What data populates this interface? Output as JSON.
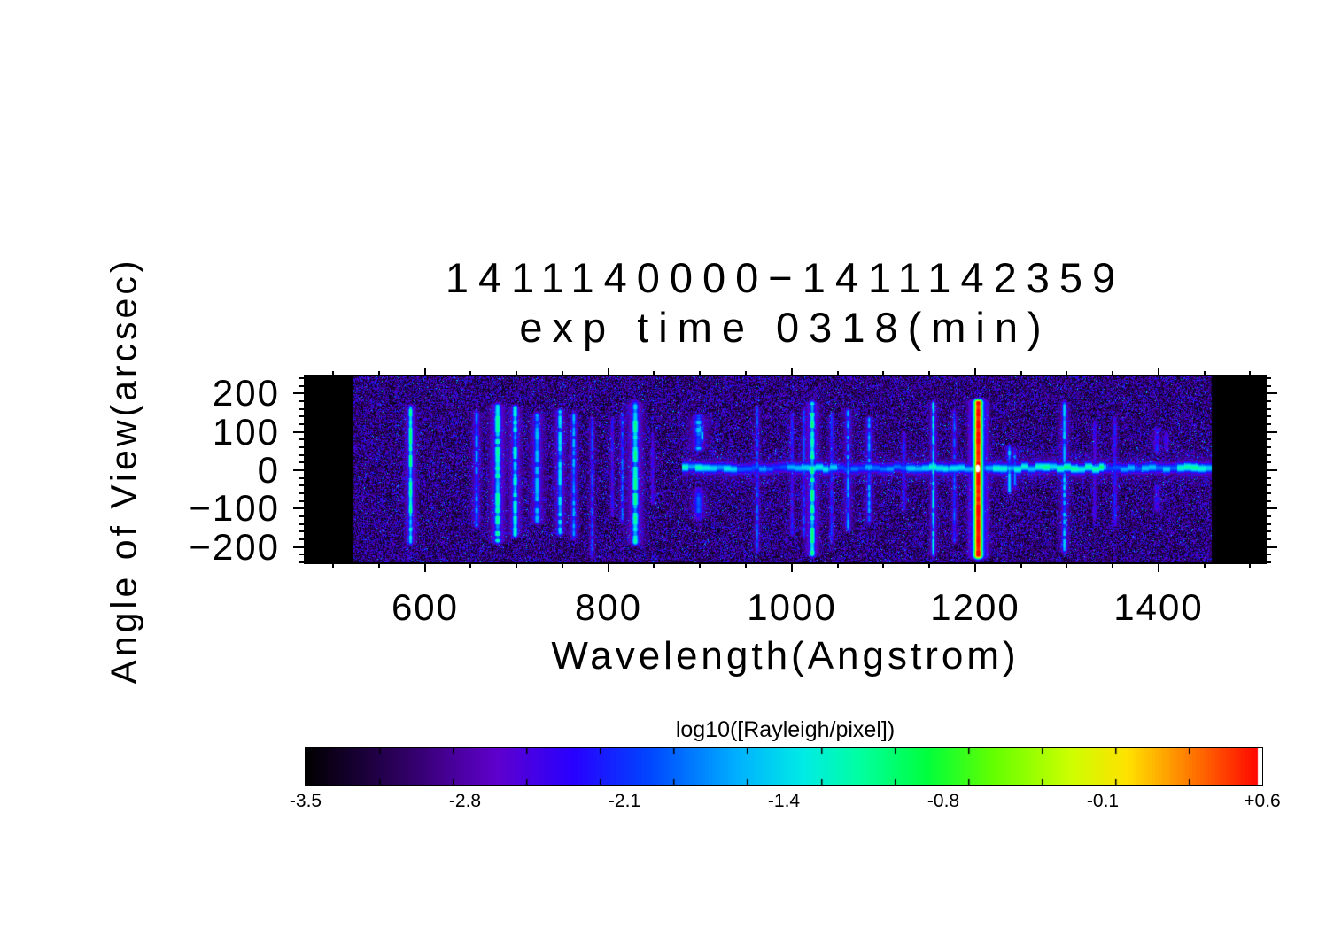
{
  "figure": {
    "title_line1": "1411140000−1411142359",
    "title_line2": "exp time 0318(min)"
  },
  "chart_data": {
    "type": "heatmap",
    "title": "1411140000−1411142359 exp time 0318(min)",
    "xlabel": "Wavelength(Angstrom)",
    "ylabel": "Angle of View(arcsec)",
    "xlim": [
      470,
      1516
    ],
    "ylim": [
      -240,
      245
    ],
    "x_major_ticks": [
      600,
      800,
      1000,
      1200,
      1400
    ],
    "x_tick_labels": [
      "600",
      "800",
      "1000",
      "1200",
      "1400"
    ],
    "x_minor_step": 50,
    "y_major_ticks": [
      200,
      100,
      0,
      -100,
      -200
    ],
    "y_tick_labels": [
      "200",
      "100",
      "0",
      "−100",
      "−200"
    ],
    "y_minor_step": 20,
    "data_wavelength_range": [
      522,
      1458
    ],
    "colorbar": {
      "title": "log10([Rayleigh/pixel])",
      "min": -3.5,
      "max": 0.6,
      "tick_values": [
        -3.5,
        -2.8,
        -2.1,
        -1.4,
        -0.8,
        -0.1,
        0.6
      ],
      "tick_labels": [
        "-3.5",
        "-2.8",
        "-2.1",
        "-1.4",
        "-0.8",
        "-0.1",
        "+0.6"
      ],
      "n_minor_tick_intervals": 13,
      "colormap_stops": [
        [
          0.0,
          [
            0,
            0,
            0
          ]
        ],
        [
          0.1,
          [
            45,
            0,
            95
          ]
        ],
        [
          0.2,
          [
            95,
            0,
            205
          ]
        ],
        [
          0.28,
          [
            40,
            0,
            255
          ]
        ],
        [
          0.36,
          [
            0,
            70,
            255
          ]
        ],
        [
          0.45,
          [
            0,
            175,
            255
          ]
        ],
        [
          0.52,
          [
            0,
            235,
            230
          ]
        ],
        [
          0.58,
          [
            0,
            255,
            160
          ]
        ],
        [
          0.65,
          [
            0,
            255,
            60
          ]
        ],
        [
          0.72,
          [
            100,
            255,
            0
          ]
        ],
        [
          0.8,
          [
            205,
            255,
            0
          ]
        ],
        [
          0.86,
          [
            255,
            225,
            0
          ]
        ],
        [
          0.92,
          [
            255,
            130,
            0
          ]
        ],
        [
          1.0,
          [
            255,
            0,
            0
          ]
        ]
      ]
    },
    "horizontal_band": {
      "center_arcsec": 6,
      "sigma_arcsec": 11,
      "wing_sigma_arcsec": 26,
      "wing_fraction": 0.35,
      "segments": [
        [
          880,
          940,
          0.5
        ],
        [
          940,
          995,
          0.38
        ],
        [
          995,
          1040,
          0.52
        ],
        [
          1040,
          1125,
          0.43
        ],
        [
          1125,
          1170,
          0.52
        ],
        [
          1170,
          1212,
          0.46
        ],
        [
          1212,
          1235,
          0.5
        ],
        [
          1235,
          1275,
          0.52
        ],
        [
          1275,
          1340,
          0.55
        ],
        [
          1340,
          1420,
          0.42
        ],
        [
          1420,
          1458,
          0.55
        ]
      ]
    },
    "emission_lines": [
      {
        "wl": 584,
        "i": 0.58,
        "y0": -205,
        "y1": 180,
        "w": 4
      },
      {
        "wl": 656,
        "i": 0.42,
        "y0": -160,
        "y1": 165,
        "w": 4
      },
      {
        "wl": 679,
        "i": 0.55,
        "y0": -200,
        "y1": 185,
        "w": 6
      },
      {
        "wl": 698,
        "i": 0.52,
        "y0": -185,
        "y1": 180,
        "w": 5
      },
      {
        "wl": 722,
        "i": 0.44,
        "y0": -150,
        "y1": 160,
        "w": 6
      },
      {
        "wl": 747,
        "i": 0.48,
        "y0": -180,
        "y1": 170,
        "w": 5
      },
      {
        "wl": 762,
        "i": 0.44,
        "y0": -190,
        "y1": 160,
        "w": 4
      },
      {
        "wl": 782,
        "i": 0.36,
        "y0": -240,
        "y1": 150,
        "w": 3
      },
      {
        "wl": 804,
        "i": 0.3,
        "y0": -130,
        "y1": 150,
        "w": 3
      },
      {
        "wl": 815,
        "i": 0.38,
        "y0": -150,
        "y1": 160,
        "w": 3
      },
      {
        "wl": 829,
        "i": 0.56,
        "y0": -205,
        "y1": 190,
        "w": 6
      },
      {
        "wl": 848,
        "i": 0.26,
        "y0": -100,
        "y1": 110,
        "w": 3
      },
      {
        "wl": 898,
        "i": 0.45,
        "y0": 40,
        "y1": 155,
        "w": 8
      },
      {
        "wl": 898,
        "i": 0.36,
        "y0": -140,
        "y1": -35,
        "w": 8
      },
      {
        "wl": 902,
        "i": 0.5,
        "y0": 60,
        "y1": 130,
        "w": 3
      },
      {
        "wl": 962,
        "i": 0.38,
        "y0": -225,
        "y1": 175,
        "w": 3
      },
      {
        "wl": 1000,
        "i": 0.32,
        "y0": -180,
        "y1": 160,
        "w": 3
      },
      {
        "wl": 1013,
        "i": 0.36,
        "y0": -190,
        "y1": 170,
        "w": 3
      },
      {
        "wl": 1022,
        "i": 0.58,
        "y0": -235,
        "y1": 190,
        "w": 5
      },
      {
        "wl": 1043,
        "i": 0.34,
        "y0": -200,
        "y1": 160,
        "w": 3
      },
      {
        "wl": 1061,
        "i": 0.42,
        "y0": -170,
        "y1": 170,
        "w": 4
      },
      {
        "wl": 1084,
        "i": 0.42,
        "y0": -145,
        "y1": 150,
        "w": 4
      },
      {
        "wl": 1122,
        "i": 0.32,
        "y0": -115,
        "y1": 110,
        "w": 3
      },
      {
        "wl": 1154,
        "i": 0.52,
        "y0": -235,
        "y1": 190,
        "w": 3
      },
      {
        "wl": 1177,
        "i": 0.37,
        "y0": -200,
        "y1": 170,
        "w": 3
      },
      {
        "wl": 1203,
        "i": 1.0,
        "y0": -240,
        "y1": 195,
        "w": 9,
        "special": "lyman-alpha"
      },
      {
        "wl": 1237,
        "i": 0.46,
        "y0": -70,
        "y1": 75,
        "w": 4
      },
      {
        "wl": 1243,
        "i": 0.4,
        "y0": -60,
        "y1": 65,
        "w": 3
      },
      {
        "wl": 1297,
        "i": 0.46,
        "y0": -225,
        "y1": 190,
        "w": 4
      },
      {
        "wl": 1330,
        "i": 0.26,
        "y0": -140,
        "y1": 140,
        "w": 3
      },
      {
        "wl": 1352,
        "i": 0.32,
        "y0": -155,
        "y1": 150,
        "w": 3
      },
      {
        "wl": 1398,
        "i": 0.32,
        "y0": 30,
        "y1": 120,
        "w": 5
      },
      {
        "wl": 1398,
        "i": 0.28,
        "y0": -120,
        "y1": -30,
        "w": 5
      },
      {
        "wl": 1408,
        "i": 0.26,
        "y0": 40,
        "y1": 110,
        "w": 4
      }
    ],
    "lyman_alpha_core": {
      "wl": 1203,
      "y_arcsec": 5,
      "color": "#ffffff"
    }
  }
}
